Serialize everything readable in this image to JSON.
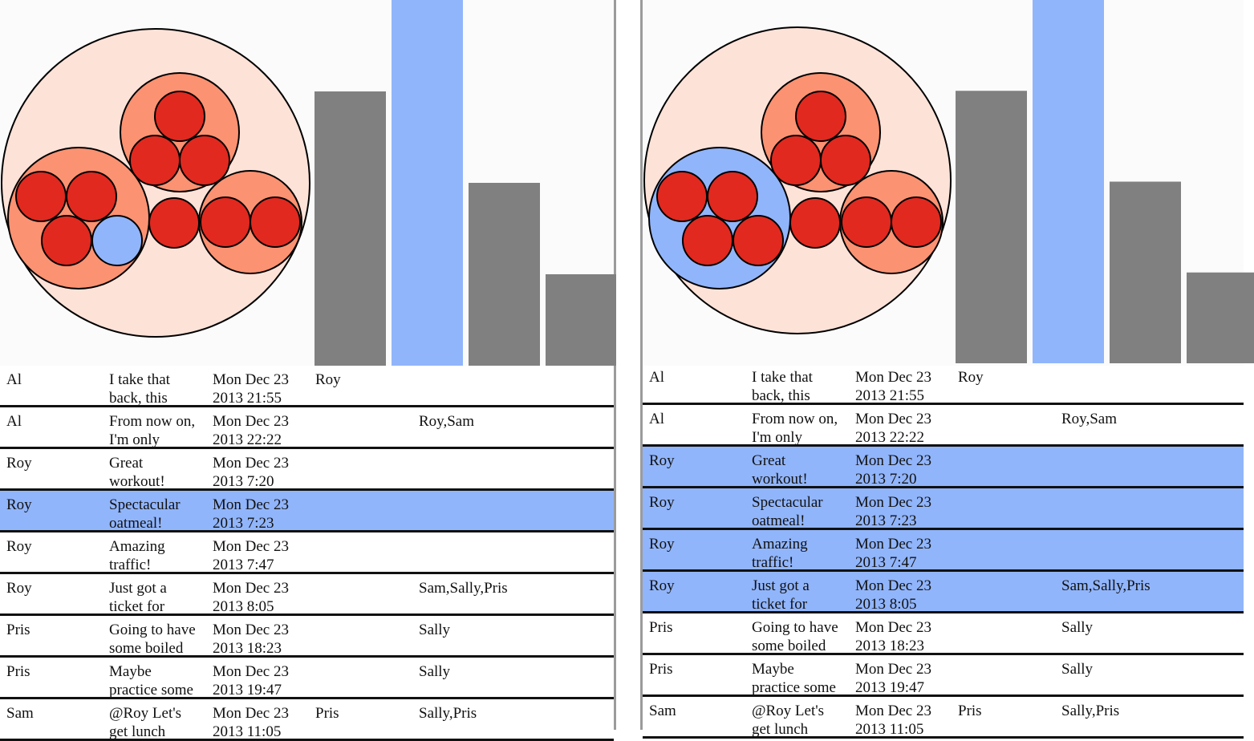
{
  "colors": {
    "outer_circle": "#fde2d8",
    "group_circle": "#fb9272",
    "user_circle_red": "#e1291f",
    "highlight_blue": "#91b5fb",
    "bar_gray": "#808080",
    "background": "#fbfbfb",
    "stroke": "#000000"
  },
  "left_panel": {
    "bubble_chart": {
      "groups": [
        {
          "type": "group",
          "highlight": false,
          "members": [
            "red",
            "red",
            "red"
          ]
        },
        {
          "type": "group",
          "highlight": false,
          "members": [
            "red",
            "red",
            "red",
            "blue"
          ]
        },
        {
          "type": "group",
          "highlight": false,
          "members": [
            "red",
            "red"
          ]
        },
        {
          "type": "single",
          "highlight": false,
          "members": [
            "red"
          ]
        }
      ]
    },
    "bar_chart": {
      "type": "bar",
      "values": [
        0.75,
        1.0,
        0.5,
        0.25
      ],
      "highlight_index": 1
    },
    "rows": [
      {
        "user": "Al",
        "text": "I take that\nback, this",
        "date": "Mon Dec 23\n2013 21:55",
        "reply": "Roy",
        "mentions": "",
        "highlight": false
      },
      {
        "user": "Al",
        "text": "From now on,\nI'm only",
        "date": "Mon Dec 23\n2013 22:22",
        "reply": "",
        "mentions": "Roy,Sam",
        "highlight": false
      },
      {
        "user": "Roy",
        "text": "Great\nworkout!",
        "date": "Mon Dec 23\n2013 7:20",
        "reply": "",
        "mentions": "",
        "highlight": false
      },
      {
        "user": "Roy",
        "text": "Spectacular\noatmeal!",
        "date": "Mon Dec 23\n2013 7:23",
        "reply": "",
        "mentions": "",
        "highlight": true
      },
      {
        "user": "Roy",
        "text": "Amazing\ntraffic!",
        "date": "Mon Dec 23\n2013 7:47",
        "reply": "",
        "mentions": "",
        "highlight": false
      },
      {
        "user": "Roy",
        "text": "Just got a\nticket for",
        "date": "Mon Dec 23\n2013 8:05",
        "reply": "",
        "mentions": "Sam,Sally,Pris",
        "highlight": false
      },
      {
        "user": "Pris",
        "text": "Going to have\nsome boiled",
        "date": "Mon Dec 23\n2013 18:23",
        "reply": "",
        "mentions": "Sally",
        "highlight": false
      },
      {
        "user": "Pris",
        "text": "Maybe\npractice some",
        "date": "Mon Dec 23\n2013 19:47",
        "reply": "",
        "mentions": "Sally",
        "highlight": false
      },
      {
        "user": "Sam",
        "text": "@Roy Let's\nget lunch",
        "date": "Mon Dec 23\n2013 11:05",
        "reply": "Pris",
        "mentions": "Sally,Pris",
        "highlight": false
      }
    ]
  },
  "right_panel": {
    "bubble_chart": {
      "groups": [
        {
          "type": "group",
          "highlight": false,
          "members": [
            "red",
            "red",
            "red"
          ]
        },
        {
          "type": "group",
          "highlight": true,
          "members": [
            "red",
            "red",
            "red",
            "red"
          ]
        },
        {
          "type": "group",
          "highlight": false,
          "members": [
            "red",
            "red"
          ]
        },
        {
          "type": "single",
          "highlight": false,
          "members": [
            "red"
          ]
        }
      ]
    },
    "bar_chart": {
      "type": "bar",
      "values": [
        0.75,
        1.0,
        0.5,
        0.25
      ],
      "highlight_index": 1
    },
    "rows": [
      {
        "user": "Al",
        "text": "I take that\nback, this",
        "date": "Mon Dec 23\n2013 21:55",
        "reply": "Roy",
        "mentions": "",
        "highlight": false
      },
      {
        "user": "Al",
        "text": "From now on,\nI'm only",
        "date": "Mon Dec 23\n2013 22:22",
        "reply": "",
        "mentions": "Roy,Sam",
        "highlight": false
      },
      {
        "user": "Roy",
        "text": "Great\nworkout!",
        "date": "Mon Dec 23\n2013 7:20",
        "reply": "",
        "mentions": "",
        "highlight": true
      },
      {
        "user": "Roy",
        "text": "Spectacular\noatmeal!",
        "date": "Mon Dec 23\n2013 7:23",
        "reply": "",
        "mentions": "",
        "highlight": true
      },
      {
        "user": "Roy",
        "text": "Amazing\ntraffic!",
        "date": "Mon Dec 23\n2013 7:47",
        "reply": "",
        "mentions": "",
        "highlight": true
      },
      {
        "user": "Roy",
        "text": "Just got a\nticket for",
        "date": "Mon Dec 23\n2013 8:05",
        "reply": "",
        "mentions": "Sam,Sally,Pris",
        "highlight": true
      },
      {
        "user": "Pris",
        "text": "Going to have\nsome boiled",
        "date": "Mon Dec 23\n2013 18:23",
        "reply": "",
        "mentions": "Sally",
        "highlight": false
      },
      {
        "user": "Pris",
        "text": "Maybe\npractice some",
        "date": "Mon Dec 23\n2013 19:47",
        "reply": "",
        "mentions": "Sally",
        "highlight": false
      },
      {
        "user": "Sam",
        "text": "@Roy Let's\nget lunch",
        "date": "Mon Dec 23\n2013 11:05",
        "reply": "Pris",
        "mentions": "Sally,Pris",
        "highlight": false
      }
    ]
  }
}
